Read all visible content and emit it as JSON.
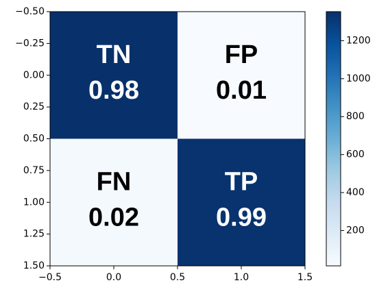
{
  "chart_data": {
    "type": "heatmap",
    "values": [
      [
        1353,
        14
      ],
      [
        33,
        1340
      ]
    ],
    "annotations": [
      [
        "TN",
        "FP"
      ],
      [
        "FN",
        "TP"
      ]
    ],
    "cell_labels": [
      [
        "0.98",
        "0.01"
      ],
      [
        "0.02",
        "0.99"
      ]
    ],
    "xlim": [
      -0.5,
      1.5
    ],
    "xticks": [
      {
        "value": -0.5,
        "label": "−0.5"
      },
      {
        "value": 0,
        "label": "0.0"
      },
      0.5,
      {
        "value": 1,
        "label": "1.0"
      },
      1.5
    ],
    "ylim": [
      -0.5,
      1.5
    ],
    "yticks": [
      {
        "value": -0.5,
        "label": "−0.50"
      },
      {
        "value": -0.25,
        "label": "−0.25"
      },
      {
        "value": 0,
        "label": "0.00"
      },
      {
        "value": 0.25,
        "label": "0.25"
      },
      {
        "value": 0.5,
        "label": "0.50"
      },
      {
        "value": 0.75,
        "label": "0.75"
      },
      {
        "value": 1,
        "label": "1.00"
      },
      {
        "value": 1.25,
        "label": "1.25"
      },
      {
        "value": 1.5,
        "label": "1.50"
      }
    ],
    "colorbar_lim": [
      14,
      1353
    ],
    "colorbar_ticks": [
      200,
      400,
      600,
      800,
      1000,
      1200
    ],
    "colormap": [
      "#f7fbff",
      "#deebf7",
      "#c6dbef",
      "#9ecae1",
      "#6baed6",
      "#4292c6",
      "#2171b5",
      "#08519c",
      "#08306b"
    ]
  }
}
